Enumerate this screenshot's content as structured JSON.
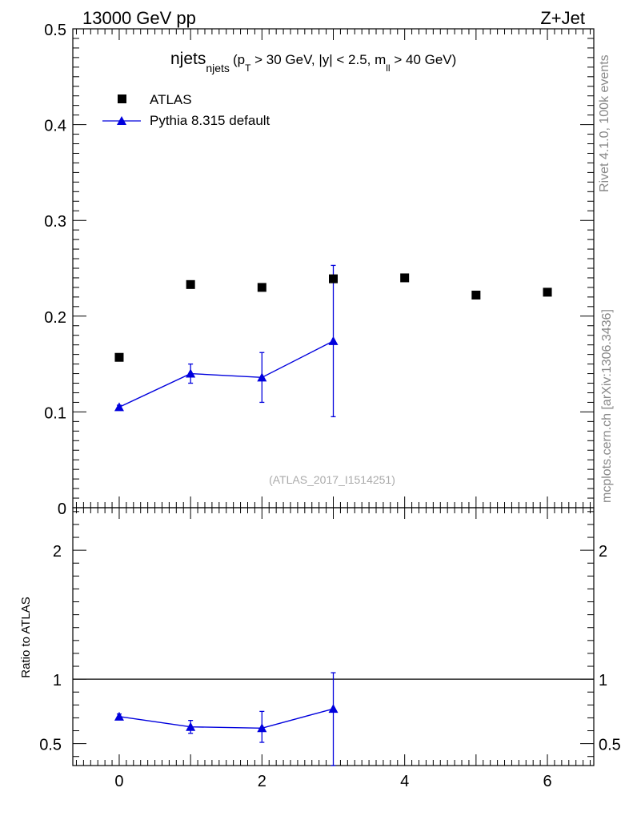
{
  "header": {
    "left_label": "13000 GeV pp",
    "right_label": "Z+Jet"
  },
  "side_labels": {
    "rivet": "Rivet 4.1.0,  100k events",
    "mcplots": "mcplots.cern.ch [arXiv:1306.3436]"
  },
  "watermark": "(ATLAS_2017_I1514251)",
  "title": {
    "main": "njets",
    "main_sub": "njets",
    "cond_1": "(p",
    "cond_1_sub": "T",
    "cond_2": " > 30 GeV, |y| < 2.5, m",
    "cond_2_sub": "ll",
    "cond_3": " > 40 GeV)"
  },
  "legend": {
    "data": "ATLAS",
    "mc": "Pythia 8.315 default"
  },
  "colors": {
    "data": "#000000",
    "mc": "#0000dd"
  },
  "chart_data": [
    {
      "type": "scatter",
      "name": "main",
      "xlim": [
        -0.65,
        6.65
      ],
      "ylim": [
        0,
        0.5
      ],
      "yticks": [
        "0",
        "0.1",
        "0.2",
        "0.3",
        "0.4",
        "0.5"
      ],
      "series": [
        {
          "name": "ATLAS",
          "x": [
            0,
            1,
            2,
            3,
            4,
            5,
            6
          ],
          "y": [
            0.157,
            0.233,
            0.23,
            0.239,
            0.24,
            0.222,
            0.225
          ]
        },
        {
          "name": "Pythia 8.315 default",
          "x": [
            0,
            1,
            2,
            3
          ],
          "y": [
            0.105,
            0.14,
            0.136,
            0.174
          ],
          "err_lo": [
            0.103,
            0.13,
            0.11,
            0.095
          ],
          "err_hi": [
            0.107,
            0.15,
            0.162,
            0.253
          ]
        }
      ]
    },
    {
      "type": "line",
      "name": "ratio",
      "ylabel": "Ratio to ATLAS",
      "xlim": [
        -0.65,
        6.65
      ],
      "ylim": [
        0.33,
        2.33
      ],
      "yticks_left": [
        "0.5",
        "1",
        "2"
      ],
      "yticks_right": [
        "0.5",
        "1",
        "2"
      ],
      "xticks": [
        "0",
        "2",
        "4",
        "6"
      ],
      "reference": 1,
      "series": [
        {
          "name": "Pythia 8.315 default",
          "x": [
            0,
            1,
            2,
            3
          ],
          "y": [
            0.71,
            0.63,
            0.62,
            0.77
          ],
          "err_lo": [
            0.69,
            0.58,
            0.51,
            0.33
          ],
          "err_hi": [
            0.73,
            0.68,
            0.75,
            1.05
          ]
        }
      ]
    }
  ]
}
